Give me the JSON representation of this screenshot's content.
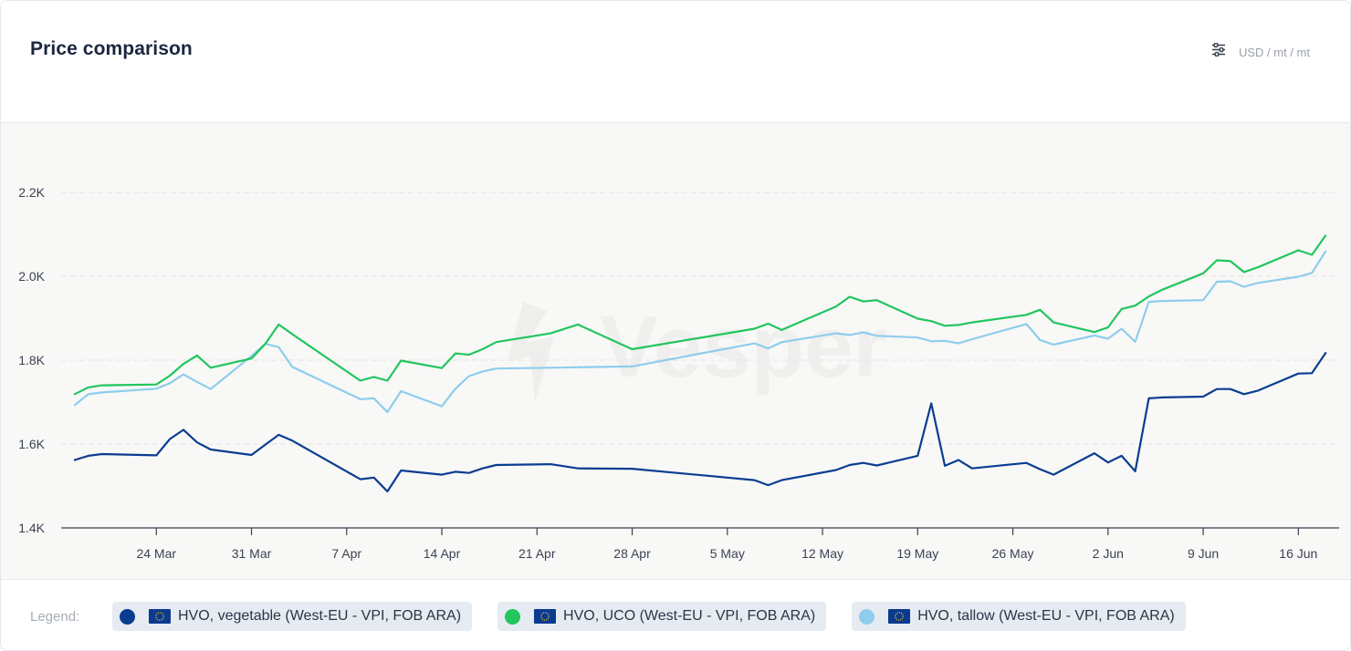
{
  "header": {
    "title": "Price comparison",
    "unit": "USD / mt / mt",
    "settings_icon": "sliders-icon"
  },
  "legend": {
    "label": "Legend:",
    "items": [
      {
        "name": "HVO, vegetable (West-EU - VPI, FOB ARA)",
        "color": "#0a3d91",
        "flag_icon": "eu-flag-icon"
      },
      {
        "name": "HVO, UCO (West-EU - VPI, FOB ARA)",
        "color": "#22c55e",
        "flag_icon": "eu-flag-icon"
      },
      {
        "name": "HVO, tallow (West-EU - VPI, FOB ARA)",
        "color": "#8ecdec",
        "flag_icon": "eu-flag-icon"
      }
    ]
  },
  "watermark": "Vesper",
  "chart_data": {
    "type": "line",
    "ylim": [
      1400,
      2300
    ],
    "yticks": [
      1400,
      1600,
      1800,
      2000,
      2200
    ],
    "ytick_labels": [
      "1.4K",
      "1.6K",
      "1.8K",
      "2.0K",
      "2.2K"
    ],
    "xlim": [
      "2025-03-17",
      "2025-06-19"
    ],
    "xticks": [
      "2025-03-24",
      "2025-03-31",
      "2025-04-07",
      "2025-04-14",
      "2025-04-21",
      "2025-04-28",
      "2025-05-05",
      "2025-05-12",
      "2025-05-19",
      "2025-05-26",
      "2025-06-02",
      "2025-06-09",
      "2025-06-16"
    ],
    "xtick_labels": [
      "24 Mar",
      "31 Mar",
      "7 Apr",
      "14 Apr",
      "21 Apr",
      "28 Apr",
      "5 May",
      "12 May",
      "19 May",
      "26 May",
      "2 Jun",
      "9 Jun",
      "16 Jun"
    ],
    "grid": true,
    "series": [
      {
        "name": "HVO, vegetable (West-EU - VPI, FOB ARA)",
        "color": "#0a3d91",
        "x": [
          "2025-03-18",
          "2025-03-19",
          "2025-03-20",
          "2025-03-24",
          "2025-03-25",
          "2025-03-26",
          "2025-03-27",
          "2025-03-28",
          "2025-03-31",
          "2025-04-01",
          "2025-04-02",
          "2025-04-03",
          "2025-04-08",
          "2025-04-09",
          "2025-04-10",
          "2025-04-11",
          "2025-04-14",
          "2025-04-15",
          "2025-04-16",
          "2025-04-17",
          "2025-04-18",
          "2025-04-22",
          "2025-04-24",
          "2025-04-28",
          "2025-05-07",
          "2025-05-08",
          "2025-05-09",
          "2025-05-13",
          "2025-05-14",
          "2025-05-15",
          "2025-05-16",
          "2025-05-19",
          "2025-05-20",
          "2025-05-21",
          "2025-05-22",
          "2025-05-23",
          "2025-05-27",
          "2025-05-28",
          "2025-05-29",
          "2025-06-01",
          "2025-06-02",
          "2025-06-03",
          "2025-06-04",
          "2025-06-05",
          "2025-06-06",
          "2025-06-09",
          "2025-06-10",
          "2025-06-11",
          "2025-06-12",
          "2025-06-13",
          "2025-06-16",
          "2025-06-17",
          "2025-06-18"
        ],
        "values": [
          1562,
          1572,
          1576,
          1573,
          1612,
          1634,
          1604,
          1587,
          1574,
          1598,
          1622,
          1608,
          1516,
          1520,
          1487,
          1537,
          1527,
          1534,
          1531,
          1542,
          1550,
          1552,
          1542,
          1541,
          1514,
          1502,
          1514,
          1538,
          1550,
          1555,
          1549,
          1572,
          1697,
          1548,
          1562,
          1542,
          1555,
          1540,
          1527,
          1578,
          1556,
          1572,
          1535,
          1709,
          1711,
          1713,
          1731,
          1731,
          1719,
          1727,
          1768,
          1769,
          1817
        ]
      },
      {
        "name": "HVO, UCO (West-EU - VPI, FOB ARA)",
        "color": "#22c55e",
        "x": [
          "2025-03-18",
          "2025-03-19",
          "2025-03-20",
          "2025-03-24",
          "2025-03-25",
          "2025-03-26",
          "2025-03-27",
          "2025-03-28",
          "2025-03-31",
          "2025-04-01",
          "2025-04-02",
          "2025-04-03",
          "2025-04-08",
          "2025-04-09",
          "2025-04-10",
          "2025-04-11",
          "2025-04-14",
          "2025-04-15",
          "2025-04-16",
          "2025-04-17",
          "2025-04-18",
          "2025-04-22",
          "2025-04-24",
          "2025-04-28",
          "2025-05-07",
          "2025-05-08",
          "2025-05-09",
          "2025-05-13",
          "2025-05-14",
          "2025-05-15",
          "2025-05-16",
          "2025-05-19",
          "2025-05-20",
          "2025-05-21",
          "2025-05-22",
          "2025-05-23",
          "2025-05-27",
          "2025-05-28",
          "2025-05-29",
          "2025-06-01",
          "2025-06-02",
          "2025-06-03",
          "2025-06-04",
          "2025-06-05",
          "2025-06-06",
          "2025-06-09",
          "2025-06-10",
          "2025-06-11",
          "2025-06-12",
          "2025-06-13",
          "2025-06-16",
          "2025-06-17",
          "2025-06-18"
        ],
        "values": [
          1719,
          1735,
          1740,
          1742,
          1763,
          1791,
          1811,
          1782,
          1804,
          1838,
          1885,
          1862,
          1751,
          1760,
          1751,
          1799,
          1781,
          1816,
          1813,
          1826,
          1843,
          1864,
          1885,
          1826,
          1875,
          1887,
          1872,
          1928,
          1951,
          1940,
          1943,
          1899,
          1893,
          1882,
          1884,
          1890,
          1908,
          1920,
          1890,
          1867,
          1878,
          1922,
          1930,
          1952,
          1968,
          2007,
          2038,
          2036,
          2010,
          2021,
          2062,
          2051,
          2097
        ]
      },
      {
        "name": "HVO, tallow (West-EU - VPI, FOB ARA)",
        "color": "#8ecdec",
        "x": [
          "2025-03-18",
          "2025-03-19",
          "2025-03-20",
          "2025-03-24",
          "2025-03-25",
          "2025-03-26",
          "2025-03-27",
          "2025-03-28",
          "2025-03-31",
          "2025-04-01",
          "2025-04-02",
          "2025-04-03",
          "2025-04-08",
          "2025-04-09",
          "2025-04-10",
          "2025-04-11",
          "2025-04-14",
          "2025-04-15",
          "2025-04-16",
          "2025-04-17",
          "2025-04-18",
          "2025-04-22",
          "2025-04-24",
          "2025-04-28",
          "2025-05-07",
          "2025-05-08",
          "2025-05-09",
          "2025-05-13",
          "2025-05-14",
          "2025-05-15",
          "2025-05-16",
          "2025-05-19",
          "2025-05-20",
          "2025-05-21",
          "2025-05-22",
          "2025-05-23",
          "2025-05-27",
          "2025-05-28",
          "2025-05-29",
          "2025-06-01",
          "2025-06-02",
          "2025-06-03",
          "2025-06-04",
          "2025-06-05",
          "2025-06-06",
          "2025-06-09",
          "2025-06-10",
          "2025-06-11",
          "2025-06-12",
          "2025-06-13",
          "2025-06-16",
          "2025-06-17",
          "2025-06-18"
        ],
        "values": [
          1693,
          1719,
          1723,
          1732,
          1745,
          1766,
          1748,
          1731,
          1810,
          1839,
          1831,
          1784,
          1707,
          1709,
          1676,
          1726,
          1690,
          1732,
          1762,
          1773,
          1780,
          1782,
          1783,
          1785,
          1840,
          1828,
          1843,
          1864,
          1860,
          1866,
          1858,
          1854,
          1845,
          1846,
          1840,
          1850,
          1886,
          1848,
          1837,
          1859,
          1851,
          1875,
          1844,
          1939,
          1941,
          1943,
          1987,
          1988,
          1975,
          1984,
          1999,
          2008,
          2059
        ]
      }
    ]
  }
}
